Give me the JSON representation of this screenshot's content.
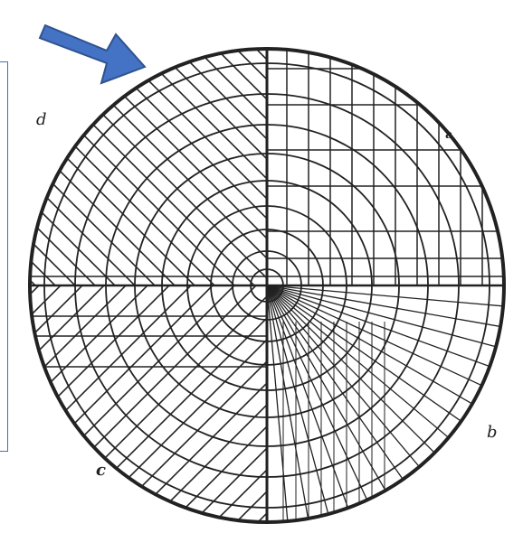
{
  "diagram": {
    "labels": {
      "d": "d",
      "a": "a",
      "b": "b",
      "c": "c"
    },
    "colors": {
      "arrow_fill": "#4472c4",
      "arrow_stroke": "#2f528f",
      "frame": "#4a6fb0",
      "ink": "#222222"
    },
    "icons": [
      "arrow-icon"
    ]
  }
}
